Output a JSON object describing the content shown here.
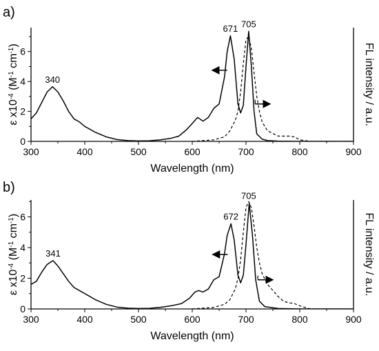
{
  "chart_data": [
    {
      "type": "line",
      "panel_label": "a)",
      "xlabel": "Wavelength (nm)",
      "ylabel_left": "ε x10-4 (M-1 cm-1)",
      "ylabel_left_parts": [
        "ε x10",
        "-4",
        " (M",
        "-1",
        " cm",
        "-1",
        ")"
      ],
      "ylabel_right": "FL intensity / a.u.",
      "xlim": [
        300,
        900
      ],
      "ylim": [
        0,
        7.6
      ],
      "x_ticks": [
        300,
        400,
        500,
        600,
        700,
        800,
        900
      ],
      "y_ticks": [
        0,
        2,
        4,
        6
      ],
      "grid": false,
      "legend": "none",
      "peak_labels": [
        {
          "x": 340,
          "y": 3.65,
          "text": "340"
        },
        {
          "x": 671,
          "y": 7.05,
          "text": "671"
        },
        {
          "x": 705,
          "y": 7.35,
          "text": "705"
        }
      ],
      "series": [
        {
          "style": "solid",
          "x": [
            300,
            310,
            320,
            330,
            340,
            350,
            360,
            370,
            380,
            390,
            400,
            420,
            440,
            460,
            480,
            500,
            520,
            540,
            560,
            575,
            590,
            600,
            610,
            620,
            630,
            640,
            650,
            660,
            665,
            671,
            678,
            685,
            690,
            695,
            700,
            705,
            710,
            715,
            720,
            730,
            740,
            760,
            800,
            900
          ],
          "y": [
            1.5,
            1.9,
            2.6,
            3.3,
            3.65,
            3.3,
            2.7,
            2.0,
            1.5,
            1.3,
            1.0,
            0.6,
            0.3,
            0.12,
            0.05,
            0.03,
            0.04,
            0.1,
            0.2,
            0.35,
            0.8,
            1.2,
            1.6,
            1.35,
            1.6,
            2.2,
            2.5,
            4.3,
            6.0,
            7.05,
            5.5,
            2.5,
            1.9,
            2.4,
            5.0,
            7.35,
            5.0,
            2.0,
            0.5,
            0.15,
            0.05,
            0.02,
            0,
            0
          ]
        },
        {
          "style": "dashed",
          "x": [
            600,
            620,
            640,
            660,
            670,
            680,
            685,
            690,
            695,
            700,
            705,
            710,
            715,
            720,
            725,
            730,
            740,
            760,
            780,
            790,
            800,
            820,
            900
          ],
          "y": [
            0,
            0.05,
            0.1,
            0.3,
            0.7,
            1.4,
            2.0,
            3.3,
            5.2,
            6.8,
            7.0,
            6.2,
            4.6,
            3.0,
            2.0,
            1.3,
            0.7,
            0.35,
            0.35,
            0.3,
            0.1,
            0,
            0
          ]
        }
      ],
      "arrows": [
        {
          "x": 665,
          "y": 4.75,
          "direction": "left"
        },
        {
          "x": 717,
          "y": 2.5,
          "direction": "right"
        }
      ]
    },
    {
      "type": "line",
      "panel_label": "b)",
      "xlabel": "Wavelength (nm)",
      "ylabel_left": "ε x10-4 (M-1 cm-1)",
      "ylabel_left_parts": [
        "ε x10",
        "-4",
        " (M",
        "-1",
        " cm",
        "-1",
        ")"
      ],
      "ylabel_right": "FL intensity / a.u.",
      "xlim": [
        300,
        900
      ],
      "ylim": [
        0,
        7.1
      ],
      "x_ticks": [
        300,
        400,
        500,
        600,
        700,
        800,
        900
      ],
      "y_ticks": [
        0,
        2,
        4,
        6
      ],
      "grid": false,
      "legend": "none",
      "peak_labels": [
        {
          "x": 341,
          "y": 3.15,
          "text": "341"
        },
        {
          "x": 672,
          "y": 5.55,
          "text": "672"
        },
        {
          "x": 705,
          "y": 6.9,
          "text": "705"
        }
      ],
      "series": [
        {
          "style": "solid",
          "x": [
            300,
            310,
            320,
            330,
            341,
            350,
            360,
            370,
            380,
            390,
            400,
            420,
            440,
            460,
            480,
            500,
            520,
            540,
            560,
            580,
            595,
            605,
            612,
            620,
            630,
            640,
            650,
            660,
            665,
            672,
            678,
            685,
            690,
            695,
            700,
            706,
            712,
            718,
            725,
            735,
            760,
            800,
            900
          ],
          "y": [
            1.6,
            1.8,
            2.4,
            2.9,
            3.15,
            2.8,
            2.3,
            1.8,
            1.4,
            1.2,
            1.0,
            0.6,
            0.3,
            0.12,
            0.05,
            0.03,
            0.04,
            0.1,
            0.2,
            0.35,
            0.7,
            1.1,
            1.2,
            1.1,
            1.3,
            1.9,
            2.1,
            3.6,
            4.8,
            5.55,
            4.5,
            2.2,
            1.7,
            2.2,
            4.2,
            6.9,
            4.8,
            1.9,
            0.5,
            0.15,
            0.03,
            0,
            0
          ]
        },
        {
          "style": "dashed",
          "x": [
            600,
            620,
            640,
            660,
            670,
            680,
            685,
            690,
            695,
            700,
            705,
            710,
            715,
            720,
            725,
            730,
            740,
            750,
            760,
            770,
            780,
            790,
            800,
            820,
            900
          ],
          "y": [
            0,
            0.05,
            0.1,
            0.3,
            0.6,
            1.3,
            2.0,
            3.2,
            5.0,
            6.6,
            7.0,
            6.6,
            5.4,
            4.0,
            3.0,
            2.3,
            1.6,
            1.2,
            0.8,
            0.5,
            0.4,
            0.35,
            0.2,
            0,
            0
          ]
        }
      ],
      "arrows": [
        {
          "x": 666,
          "y": 3.55,
          "direction": "left"
        },
        {
          "x": 722,
          "y": 1.9,
          "direction": "right"
        }
      ]
    }
  ]
}
